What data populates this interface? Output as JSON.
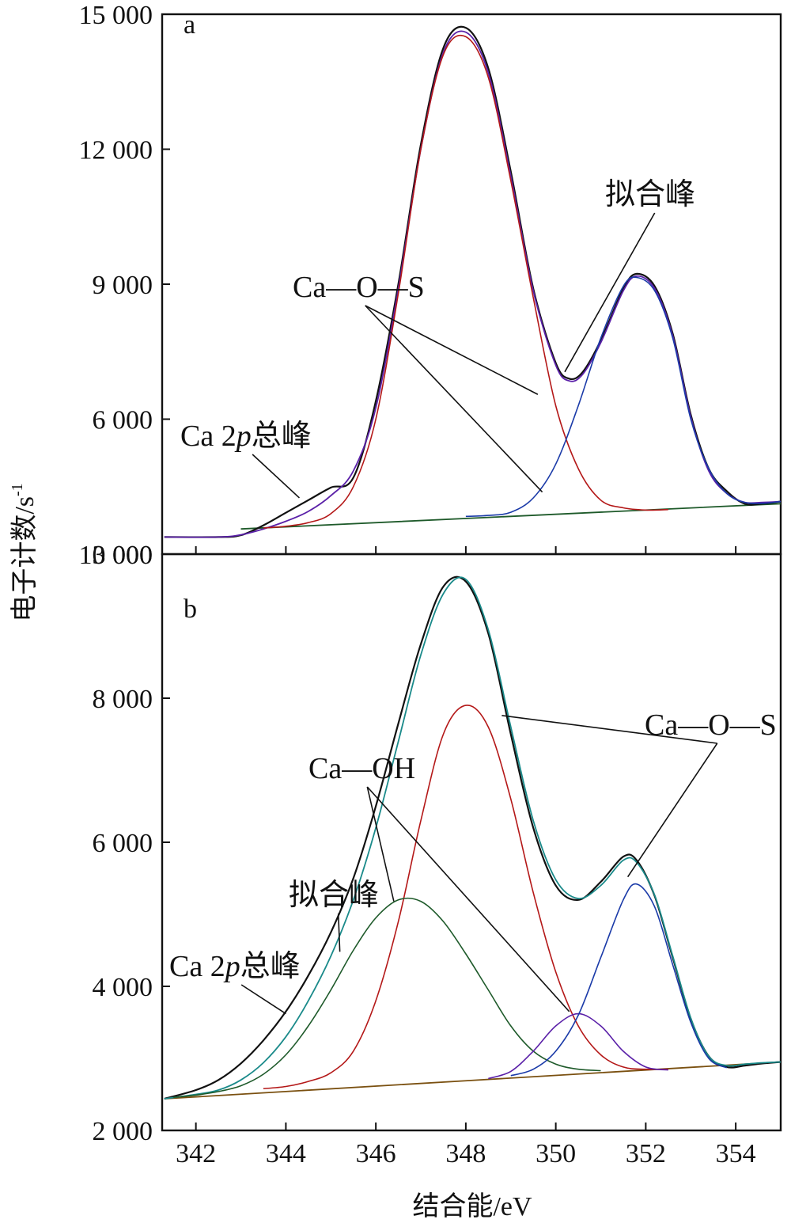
{
  "chart_data": [
    {
      "panel_label": "a",
      "type": "line",
      "ylim": [
        3000,
        15000
      ],
      "xlim": [
        341.25,
        355
      ],
      "yticks": [
        3000,
        6000,
        9000,
        12000,
        15000
      ],
      "ytick_labels": [
        "3 000",
        "6 000",
        "9 000",
        "12 000",
        "15 000"
      ],
      "annotations": [
        {
          "text": "拟合峰",
          "targets": [
            [
              350.2,
              7050
            ]
          ]
        },
        {
          "text": "Ca—O—S",
          "targets": [
            [
              349.6,
              6550
            ],
            [
              349.7,
              4380
            ]
          ]
        },
        {
          "text_main": "Ca 2",
          "text_italic": "p",
          "text_tail": "总峰",
          "targets": [
            [
              344.3,
              4250
            ]
          ]
        }
      ],
      "series": [
        {
          "id": "total",
          "color": "#111111",
          "width": 2.2,
          "x": [
            341.3,
            342.5,
            343.0,
            343.5,
            344.0,
            344.5,
            345.0,
            345.5,
            346.0,
            346.5,
            347.0,
            347.5,
            348.0,
            348.5,
            349.0,
            349.5,
            350.0,
            350.3,
            350.6,
            351.0,
            351.5,
            351.8,
            352.2,
            352.6,
            353.0,
            353.4,
            353.8,
            354.2,
            354.6,
            355.0
          ],
          "y": [
            3380,
            3380,
            3420,
            3640,
            3920,
            4200,
            4480,
            4700,
            6400,
            9000,
            12100,
            14250,
            14700,
            13800,
            11500,
            8900,
            7250,
            6900,
            7050,
            7750,
            8900,
            9230,
            8950,
            7900,
            6100,
            4900,
            4400,
            4120,
            4120,
            4170
          ]
        },
        {
          "id": "fit",
          "color": "#5a20a8",
          "width": 1.8,
          "x": [
            341.3,
            342.5,
            343.0,
            343.5,
            344.0,
            344.5,
            345.0,
            345.5,
            346.0,
            346.5,
            347.0,
            347.5,
            348.0,
            348.5,
            349.0,
            349.5,
            350.0,
            350.3,
            350.6,
            351.0,
            351.5,
            351.8,
            352.2,
            352.6,
            353.0,
            353.4,
            353.8,
            354.2,
            354.6,
            355.0
          ],
          "y": [
            3380,
            3380,
            3430,
            3560,
            3730,
            3950,
            4300,
            4850,
            6250,
            8900,
            12000,
            14150,
            14600,
            13700,
            11400,
            8850,
            7200,
            6850,
            7000,
            7700,
            8850,
            9180,
            8900,
            7850,
            6050,
            4850,
            4350,
            4150,
            4150,
            4170
          ]
        },
        {
          "id": "peak1",
          "color": "#b41818",
          "width": 1.6,
          "x": [
            343.5,
            344.0,
            344.5,
            345.0,
            345.5,
            346.0,
            346.5,
            347.0,
            347.5,
            348.0,
            348.5,
            349.0,
            349.5,
            350.0,
            350.5,
            351.0,
            351.5,
            352.0,
            352.5
          ],
          "y": [
            3580,
            3620,
            3700,
            3900,
            4500,
            6000,
            8800,
            12000,
            14100,
            14500,
            13600,
            11300,
            8700,
            6300,
            4900,
            4200,
            4030,
            3980,
            3990
          ]
        },
        {
          "id": "peak2",
          "color": "#1a3aa8",
          "width": 1.6,
          "x": [
            348.0,
            348.5,
            349.0,
            349.5,
            350.0,
            350.5,
            351.0,
            351.5,
            351.8,
            352.2,
            352.6,
            353.0,
            353.4,
            353.8,
            354.2,
            354.6,
            355.0
          ],
          "y": [
            3840,
            3860,
            3930,
            4250,
            5000,
            6300,
            7800,
            8950,
            9150,
            8850,
            7800,
            6000,
            4900,
            4350,
            4150,
            4130,
            4170
          ]
        },
        {
          "id": "baseline",
          "color": "#1e5a2a",
          "width": 1.8,
          "x": [
            343.0,
            355.0
          ],
          "y": [
            3560,
            4120
          ]
        }
      ]
    },
    {
      "panel_label": "b",
      "type": "line",
      "ylim": [
        2000,
        10000
      ],
      "xlim": [
        341.25,
        355
      ],
      "yticks": [
        2000,
        4000,
        6000,
        8000,
        10000
      ],
      "ytick_labels": [
        "2 000",
        "4 000",
        "6 000",
        "8 000",
        "10 000"
      ],
      "xticks": [
        342,
        344,
        346,
        348,
        350,
        352,
        354
      ],
      "xtick_labels": [
        "342",
        "344",
        "346",
        "348",
        "350",
        "352",
        "354"
      ],
      "xlabel": "结合能/eV",
      "annotations": [
        {
          "text": "Ca—O—S",
          "targets": [
            [
              348.8,
              7760
            ],
            [
              351.6,
              5520
            ]
          ]
        },
        {
          "text": "Ca—OH",
          "targets": [
            [
              346.4,
              5180
            ],
            [
              350.3,
              3650
            ]
          ]
        },
        {
          "text": "拟合峰",
          "targets": [
            [
              345.2,
              4480
            ]
          ]
        },
        {
          "text_main": "Ca 2",
          "text_italic": "p",
          "text_tail": "总峰",
          "targets": [
            [
              344.0,
              3620
            ]
          ]
        }
      ],
      "series": [
        {
          "id": "total",
          "color": "#111111",
          "width": 2.2,
          "x": [
            341.3,
            342.0,
            342.5,
            343.0,
            343.5,
            344.0,
            344.5,
            345.0,
            345.5,
            346.0,
            346.5,
            347.0,
            347.5,
            348.0,
            348.5,
            349.0,
            349.5,
            350.0,
            350.5,
            351.0,
            351.5,
            351.8,
            352.2,
            352.6,
            353.0,
            353.4,
            353.8,
            354.2,
            354.6,
            355.0
          ],
          "y": [
            2440,
            2560,
            2700,
            2930,
            3250,
            3650,
            4150,
            4750,
            5500,
            6500,
            7650,
            8750,
            9550,
            9620,
            8900,
            7500,
            6200,
            5400,
            5200,
            5450,
            5800,
            5750,
            5250,
            4400,
            3550,
            3030,
            2880,
            2900,
            2930,
            2950
          ]
        },
        {
          "id": "fit",
          "color": "#1a8a8a",
          "width": 1.8,
          "x": [
            341.3,
            342.0,
            342.5,
            343.0,
            343.5,
            344.0,
            344.5,
            345.0,
            345.5,
            346.0,
            346.5,
            347.0,
            347.5,
            348.0,
            348.5,
            349.0,
            349.5,
            350.0,
            350.5,
            351.0,
            351.5,
            351.8,
            352.2,
            352.6,
            353.0,
            353.4,
            353.8,
            354.2,
            354.6,
            355.0
          ],
          "y": [
            2440,
            2500,
            2560,
            2700,
            2940,
            3300,
            3800,
            4420,
            5200,
            6200,
            7400,
            8600,
            9450,
            9650,
            8950,
            7600,
            6300,
            5480,
            5220,
            5400,
            5750,
            5720,
            5260,
            4420,
            3560,
            3030,
            2900,
            2920,
            2940,
            2950
          ]
        },
        {
          "id": "ca_o_s_1",
          "color": "#b41818",
          "width": 1.6,
          "x": [
            343.5,
            344.0,
            344.5,
            345.0,
            345.5,
            346.0,
            346.5,
            347.0,
            347.5,
            348.0,
            348.5,
            349.0,
            349.5,
            350.0,
            350.5,
            351.0,
            351.5,
            352.0,
            352.5
          ],
          "y": [
            2580,
            2610,
            2680,
            2800,
            3100,
            3800,
            4900,
            6300,
            7500,
            7900,
            7600,
            6600,
            5300,
            4200,
            3450,
            3050,
            2880,
            2850,
            2850
          ]
        },
        {
          "id": "ca_oh_1",
          "color": "#1e5a2a",
          "width": 1.6,
          "x": [
            341.5,
            342.0,
            342.5,
            343.0,
            343.5,
            344.0,
            344.5,
            345.0,
            345.5,
            346.0,
            346.5,
            347.0,
            347.5,
            348.0,
            348.5,
            349.0,
            349.5,
            350.0,
            350.5,
            351.0
          ],
          "y": [
            2460,
            2490,
            2540,
            2620,
            2780,
            3050,
            3450,
            3950,
            4500,
            4950,
            5200,
            5180,
            4900,
            4450,
            3950,
            3450,
            3100,
            2920,
            2850,
            2830
          ]
        },
        {
          "id": "ca_oh_2",
          "color": "#5a20a8",
          "width": 1.6,
          "x": [
            348.5,
            349.0,
            349.5,
            350.0,
            350.5,
            351.0,
            351.5,
            352.0,
            352.5
          ],
          "y": [
            2720,
            2820,
            3100,
            3450,
            3620,
            3450,
            3100,
            2880,
            2840
          ]
        },
        {
          "id": "ca_o_s_2",
          "color": "#1a3aa8",
          "width": 1.6,
          "x": [
            349.0,
            349.5,
            350.0,
            350.5,
            351.0,
            351.5,
            351.8,
            352.2,
            352.6,
            353.0,
            353.4,
            353.8
          ],
          "y": [
            2760,
            2850,
            3100,
            3600,
            4400,
            5200,
            5420,
            5100,
            4300,
            3500,
            3000,
            2870
          ]
        },
        {
          "id": "baseline",
          "color": "#7a5010",
          "width": 1.8,
          "x": [
            341.3,
            355.0
          ],
          "y": [
            2440,
            2950
          ]
        }
      ]
    }
  ],
  "ylabel_main": "电子计数/s",
  "ylabel_sup": "-1"
}
